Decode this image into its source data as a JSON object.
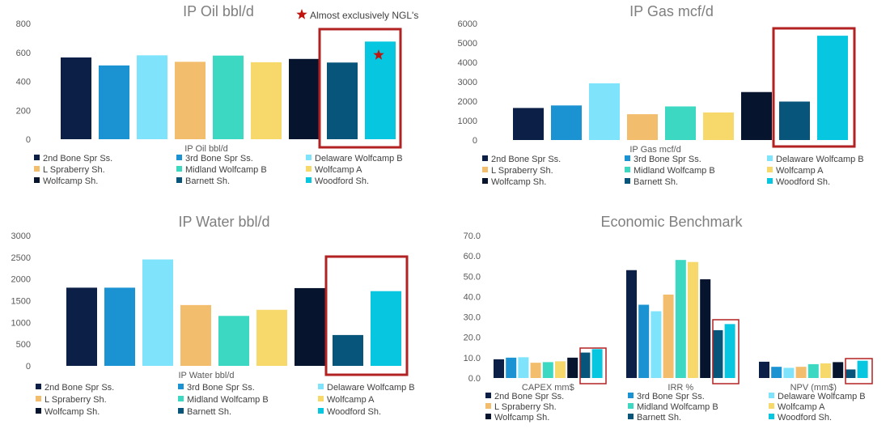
{
  "colors": {
    "series": [
      "#0b1f47",
      "#1b93d2",
      "#7fe4fb",
      "#f2bd6c",
      "#3cd8c2",
      "#f7d86a",
      "#06142e",
      "#07557a",
      "#06c6e0"
    ],
    "highlight": "#b22222",
    "star": "#c0140f"
  },
  "chart_data": [
    {
      "type": "bar",
      "title": "IP Oil bbl/d",
      "xlabel": "IP Oil bbl/d",
      "ylim": [
        0,
        800
      ],
      "yticks": [
        "0",
        "200",
        "400",
        "600",
        "800"
      ],
      "series": [
        {
          "name": "2nd Bone Spr Ss.",
          "values": [
            565
          ]
        },
        {
          "name": "3rd Bone Spr Ss.",
          "values": [
            510
          ]
        },
        {
          "name": "Delaware Wolfcamp B",
          "values": [
            580
          ]
        },
        {
          "name": "L Spraberry Sh.",
          "values": [
            535
          ]
        },
        {
          "name": "Midland Wolfcamp B",
          "values": [
            578
          ]
        },
        {
          "name": "Wolfcamp A",
          "values": [
            532
          ]
        },
        {
          "name": "Wolfcamp Sh.",
          "values": [
            555
          ]
        },
        {
          "name": "Barnett Sh.",
          "values": [
            530
          ]
        },
        {
          "name": "Woodford Sh.",
          "values": [
            675
          ]
        }
      ],
      "annotation": "Almost exclusively NGL's"
    },
    {
      "type": "bar",
      "title": "IP Gas mcf/d",
      "xlabel": "IP Gas mcf/d",
      "ylim": [
        0,
        6000
      ],
      "yticks": [
        "0",
        "1000",
        "2000",
        "3000",
        "4000",
        "5000",
        "6000"
      ],
      "series": [
        {
          "name": "2nd Bone Spr Ss.",
          "values": [
            1650
          ]
        },
        {
          "name": "3rd Bone Spr Ss.",
          "values": [
            1780
          ]
        },
        {
          "name": "Delaware Wolfcamp B",
          "values": [
            2920
          ]
        },
        {
          "name": "L Spraberry Sh.",
          "values": [
            1330
          ]
        },
        {
          "name": "Midland Wolfcamp B",
          "values": [
            1730
          ]
        },
        {
          "name": "Wolfcamp A",
          "values": [
            1420
          ]
        },
        {
          "name": "Wolfcamp Sh.",
          "values": [
            2470
          ]
        },
        {
          "name": "Barnett Sh.",
          "values": [
            1980
          ]
        },
        {
          "name": "Woodford Sh.",
          "values": [
            5370
          ]
        }
      ]
    },
    {
      "type": "bar",
      "title": "IP Water bbl/d",
      "xlabel": "IP Water bbl/d",
      "ylim": [
        0,
        3000
      ],
      "yticks": [
        "0",
        "500",
        "1000",
        "1500",
        "2000",
        "2500",
        "3000"
      ],
      "series": [
        {
          "name": "2nd Bone Spr Ss.",
          "values": [
            1800
          ]
        },
        {
          "name": "3rd Bone Spr Ss.",
          "values": [
            1800
          ]
        },
        {
          "name": "Delaware Wolfcamp B",
          "values": [
            2450
          ]
        },
        {
          "name": "L Spraberry Sh.",
          "values": [
            1400
          ]
        },
        {
          "name": "Midland Wolfcamp B",
          "values": [
            1150
          ]
        },
        {
          "name": "Wolfcamp A",
          "values": [
            1290
          ]
        },
        {
          "name": "Wolfcamp Sh.",
          "values": [
            1790
          ]
        },
        {
          "name": "Barnett Sh.",
          "values": [
            710
          ]
        },
        {
          "name": "Woodford Sh.",
          "values": [
            1720
          ]
        }
      ]
    },
    {
      "type": "bar",
      "title": "Economic Benchmark",
      "categories": [
        "CAPEX mm$",
        "IRR %",
        "NPV (mm$)"
      ],
      "ylim": [
        0,
        70
      ],
      "yticks": [
        "0.0",
        "10.0",
        "20.0",
        "30.0",
        "40.0",
        "50.0",
        "60.0",
        "70.0"
      ],
      "series": [
        {
          "name": "2nd Bone Spr Ss.",
          "values": [
            9.2,
            53.0,
            8.0
          ]
        },
        {
          "name": "3rd Bone Spr Ss.",
          "values": [
            10.0,
            36.0,
            5.5
          ]
        },
        {
          "name": "Delaware Wolfcamp B",
          "values": [
            10.2,
            32.8,
            5.0
          ]
        },
        {
          "name": "L Spraberry Sh.",
          "values": [
            7.5,
            41.0,
            5.5
          ]
        },
        {
          "name": "Midland Wolfcamp B",
          "values": [
            7.8,
            58.0,
            6.8
          ]
        },
        {
          "name": "Wolfcamp A",
          "values": [
            8.2,
            57.0,
            7.2
          ]
        },
        {
          "name": "Wolfcamp Sh.",
          "values": [
            10.0,
            48.5,
            7.8
          ]
        },
        {
          "name": "Barnett Sh.",
          "values": [
            12.5,
            23.5,
            4.2
          ]
        },
        {
          "name": "Woodford Sh.",
          "values": [
            14.2,
            26.5,
            8.5
          ]
        }
      ]
    }
  ]
}
